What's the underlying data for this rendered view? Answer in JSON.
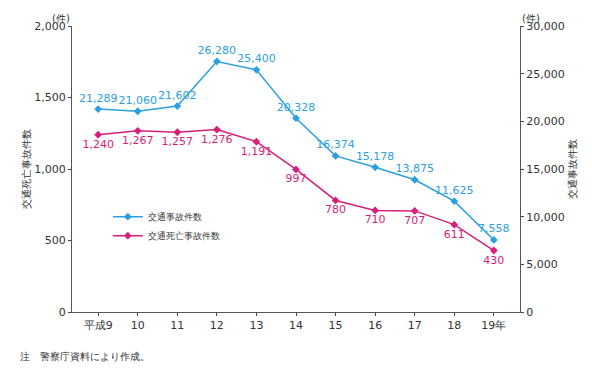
{
  "chart_data": {
    "type": "line",
    "categories": [
      "平成9",
      "10",
      "11",
      "12",
      "13",
      "14",
      "15",
      "16",
      "17",
      "18",
      "19年"
    ],
    "series": [
      {
        "name": "交通事故件数",
        "color": "#2b9fe0",
        "marker": "diamond",
        "axis": "y2",
        "values": [
          21289,
          21060,
          21602,
          26280,
          25400,
          20328,
          16374,
          15178,
          13875,
          11625,
          7558
        ],
        "value_labels": [
          "21,289",
          "21,060",
          "21,602",
          "26,280",
          "25,400",
          "20,328",
          "16,374",
          "15,178",
          "13,875",
          "11,625",
          "7,558"
        ]
      },
      {
        "name": "交通死亡事故件数",
        "color": "#d81e78",
        "marker": "diamond",
        "values": [
          1240,
          1267,
          1257,
          1276,
          1191,
          997,
          780,
          710,
          707,
          611,
          430
        ],
        "value_labels": [
          "1,240",
          "1,267",
          "1,257",
          "1,276",
          "1,191",
          "997",
          "780",
          "710",
          "707",
          "611",
          "430"
        ]
      }
    ],
    "ylabel": "交通死亡事故件数",
    "y2label": "交通事故件数",
    "ylim": [
      0,
      2000
    ],
    "yticks": [
      0,
      500,
      {
        "value": 1000,
        "label": "1,000"
      },
      {
        "value": 1500,
        "label": "1,500"
      },
      {
        "value": 2000,
        "label": "2,000"
      }
    ],
    "y2lim": [
      0,
      30000
    ],
    "y2ticks": [
      0,
      {
        "value": 5000,
        "label": "5,000"
      },
      {
        "value": 10000,
        "label": "10,000"
      },
      {
        "value": 15000,
        "label": "15,000"
      },
      {
        "value": 20000,
        "label": "20,000"
      },
      {
        "value": 25000,
        "label": "25,000"
      },
      {
        "value": 30000,
        "label": "30,000"
      }
    ],
    "annotations": [
      "(件)",
      "(件)",
      "注　警察庁資料により作成。"
    ],
    "data_labels": true,
    "grid": false,
    "legend": "left"
  }
}
